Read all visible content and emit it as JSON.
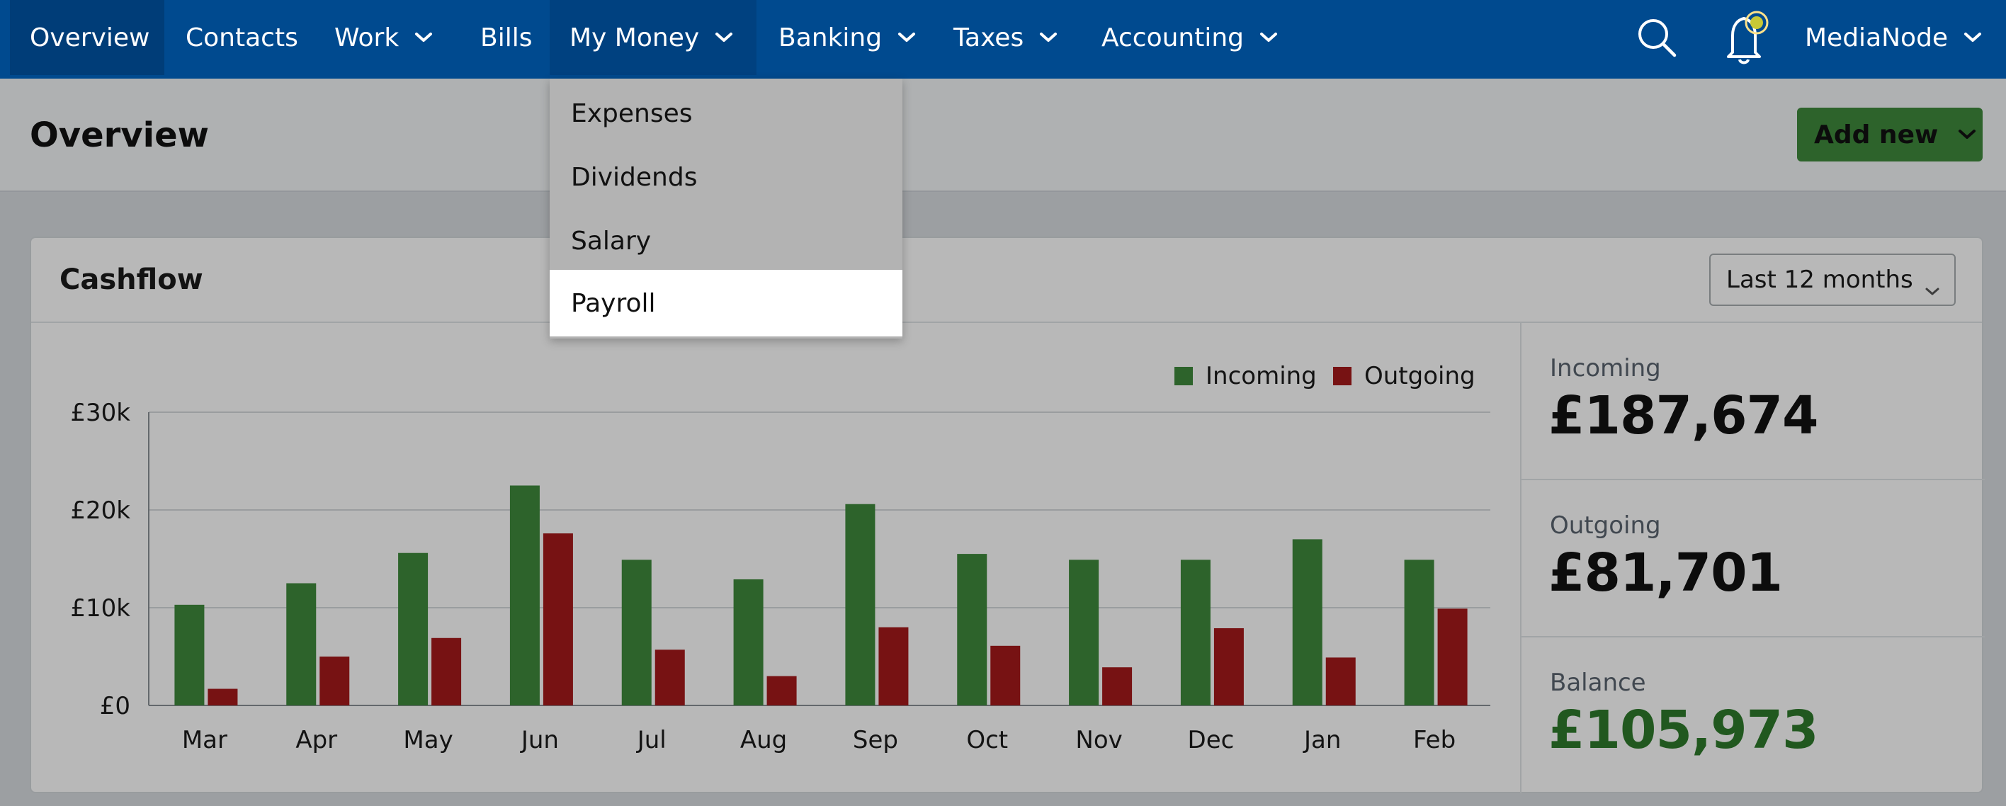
{
  "nav": {
    "items": [
      {
        "label": "Overview",
        "has_chevron": false
      },
      {
        "label": "Contacts",
        "has_chevron": false
      },
      {
        "label": "Work",
        "has_chevron": true
      },
      {
        "label": "Bills",
        "has_chevron": false
      },
      {
        "label": "My Money",
        "has_chevron": true
      },
      {
        "label": "Banking",
        "has_chevron": true
      },
      {
        "label": "Taxes",
        "has_chevron": true
      },
      {
        "label": "Accounting",
        "has_chevron": true
      }
    ],
    "account_label": "MediaNode",
    "icons": {
      "search": "search-icon",
      "notifications": "bell-icon"
    },
    "colors": {
      "bar": "#004a8f",
      "notification_dot": "#c8c836"
    }
  },
  "dropdown": {
    "items": [
      "Expenses",
      "Dividends",
      "Salary",
      "Payroll"
    ],
    "highlighted": "Payroll"
  },
  "header": {
    "title": "Overview",
    "add_new_label": "Add new"
  },
  "card": {
    "title": "Cashflow",
    "period": "Last 12 months"
  },
  "stats": {
    "incoming_label": "Incoming",
    "incoming_value": "£187,674",
    "outgoing_label": "Outgoing",
    "outgoing_value": "£81,701",
    "balance_label": "Balance",
    "balance_value": "£105,973"
  },
  "chart_data": {
    "type": "bar",
    "categories": [
      "Mar",
      "Apr",
      "May",
      "Jun",
      "Jul",
      "Aug",
      "Sep",
      "Oct",
      "Nov",
      "Dec",
      "Jan",
      "Feb"
    ],
    "series": [
      {
        "name": "Incoming",
        "color": "#3f8a3c",
        "values": [
          10300,
          12500,
          15600,
          22500,
          14900,
          12900,
          20600,
          15500,
          14900,
          14900,
          17000,
          14900
        ]
      },
      {
        "name": "Outgoing",
        "color": "#a5191b",
        "values": [
          1700,
          5000,
          6900,
          17600,
          5700,
          3000,
          8000,
          6100,
          3900,
          7900,
          4900,
          9900
        ]
      }
    ],
    "y_ticks": [
      "£0",
      "£10k",
      "£20k",
      "£30k"
    ],
    "y_tick_values": [
      0,
      10000,
      20000,
      30000
    ],
    "ylim": [
      0,
      30000
    ],
    "grid": true,
    "legend": "top-right"
  }
}
